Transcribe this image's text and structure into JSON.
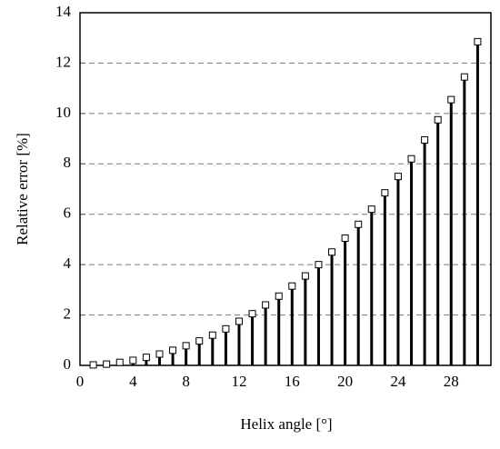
{
  "chart_data": {
    "type": "stem",
    "x_label": "Helix angle [°]",
    "y_label": "Relative error [%]",
    "x": [
      1,
      2,
      3,
      4,
      5,
      6,
      7,
      8,
      9,
      10,
      11,
      12,
      13,
      14,
      15,
      16,
      17,
      18,
      19,
      20,
      21,
      22,
      23,
      24,
      25,
      26,
      27,
      28,
      29,
      30
    ],
    "values": [
      0.02,
      0.05,
      0.12,
      0.2,
      0.32,
      0.45,
      0.6,
      0.78,
      0.97,
      1.2,
      1.45,
      1.75,
      2.05,
      2.4,
      2.75,
      3.15,
      3.55,
      4.0,
      4.5,
      5.05,
      5.6,
      6.2,
      6.85,
      7.5,
      8.2,
      8.95,
      9.75,
      10.55,
      11.45,
      12.85
    ],
    "color": "#000000",
    "xlim": [
      0,
      31
    ],
    "xticks": [
      0,
      4,
      8,
      12,
      16,
      20,
      24,
      28
    ],
    "ylim": [
      0,
      14
    ],
    "yticks": [
      0,
      2,
      4,
      6,
      8,
      10,
      12,
      14
    ],
    "grid": true
  }
}
